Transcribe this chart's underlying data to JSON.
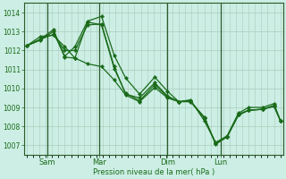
{
  "bg_color": "#cceee4",
  "grid_color": "#aaccbb",
  "line_color": "#1a6b1a",
  "marker_color": "#1a6b1a",
  "xlabel": "Pression niveau de la mer( hPa )",
  "xlabel_color": "#1a6b1a",
  "tick_color": "#1a6b1a",
  "axis_color": "#2a5a2a",
  "ylim": [
    1006.5,
    1014.5
  ],
  "yticks": [
    1007,
    1008,
    1009,
    1010,
    1011,
    1012,
    1013,
    1014
  ],
  "xtick_labels": [
    "Sam",
    "Mar",
    "Dim",
    "Lun"
  ],
  "xtick_positions": [
    0.08,
    0.285,
    0.555,
    0.765
  ],
  "vline_positions": [
    0.08,
    0.285,
    0.555,
    0.765
  ],
  "series": [
    {
      "x": [
        0.0,
        0.055,
        0.105,
        0.15,
        0.19,
        0.24,
        0.295,
        0.345,
        0.39,
        0.445,
        0.505,
        0.555,
        0.6,
        0.645,
        0.7,
        0.745,
        0.79,
        0.835,
        0.875,
        0.93,
        0.975,
        1.0
      ],
      "y": [
        1012.25,
        1012.6,
        1013.1,
        1011.7,
        1012.2,
        1013.55,
        1013.8,
        1011.75,
        1010.55,
        1009.7,
        1010.6,
        1009.85,
        1009.3,
        1009.4,
        1008.3,
        1007.15,
        1007.5,
        1008.7,
        1009.0,
        1009.0,
        1009.2,
        1008.3
      ]
    },
    {
      "x": [
        0.0,
        0.055,
        0.105,
        0.15,
        0.19,
        0.24,
        0.295,
        0.345,
        0.39,
        0.445,
        0.505,
        0.555,
        0.6,
        0.645,
        0.7,
        0.745,
        0.79,
        0.835,
        0.875,
        0.93,
        0.975,
        1.0
      ],
      "y": [
        1012.25,
        1012.6,
        1012.85,
        1012.0,
        1012.0,
        1013.35,
        1013.4,
        1011.15,
        1009.7,
        1009.5,
        1010.3,
        1009.6,
        1009.3,
        1009.3,
        1008.5,
        1007.05,
        1007.45,
        1008.65,
        1008.85,
        1008.9,
        1009.05,
        1008.3
      ]
    },
    {
      "x": [
        0.0,
        0.055,
        0.105,
        0.15,
        0.19,
        0.24,
        0.295,
        0.345,
        0.39,
        0.445,
        0.505,
        0.555,
        0.6,
        0.645,
        0.7,
        0.745,
        0.79,
        0.835,
        0.875,
        0.93,
        0.975,
        1.0
      ],
      "y": [
        1012.25,
        1012.55,
        1013.0,
        1011.65,
        1011.6,
        1013.5,
        1013.35,
        1011.05,
        1009.75,
        1009.35,
        1010.2,
        1009.55,
        1009.3,
        1009.35,
        1008.45,
        1007.1,
        1007.45,
        1008.6,
        1008.85,
        1008.9,
        1009.1,
        1008.3
      ]
    },
    {
      "x": [
        0.0,
        0.055,
        0.105,
        0.15,
        0.19,
        0.24,
        0.295,
        0.345,
        0.39,
        0.445,
        0.505,
        0.555,
        0.6,
        0.645,
        0.7,
        0.745,
        0.79,
        0.835,
        0.875,
        0.93,
        0.975,
        1.0
      ],
      "y": [
        1012.25,
        1012.75,
        1012.8,
        1012.2,
        1011.6,
        1011.3,
        1011.15,
        1010.45,
        1009.65,
        1009.3,
        1010.05,
        1009.5,
        1009.3,
        1009.35,
        1008.45,
        1007.1,
        1007.45,
        1008.6,
        1008.85,
        1008.9,
        1009.1,
        1008.3
      ]
    }
  ]
}
